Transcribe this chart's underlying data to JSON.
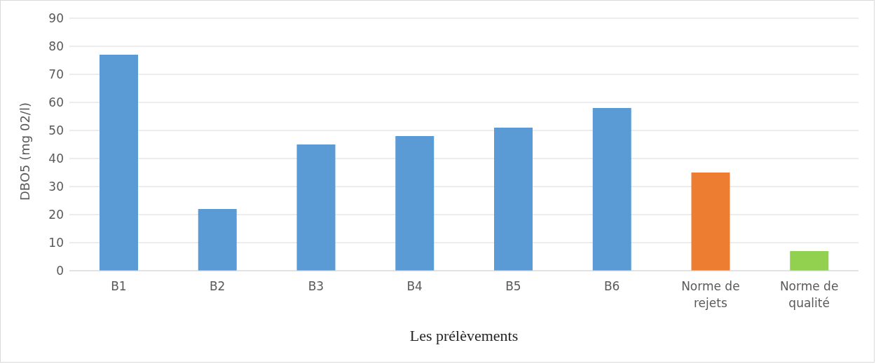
{
  "chart_data": {
    "type": "bar",
    "xlabel": "Les prélèvements",
    "ylabel": "DBO5 (mg 02/l)",
    "categories": [
      "B1",
      "B2",
      "B3",
      "B4",
      "B5",
      "B6",
      "Norme de rejets",
      "Norme de qualité"
    ],
    "values": [
      77,
      22,
      45,
      48,
      51,
      58,
      35,
      7
    ],
    "colors": [
      "#5b9bd5",
      "#5b9bd5",
      "#5b9bd5",
      "#5b9bd5",
      "#5b9bd5",
      "#5b9bd5",
      "#ed7d31",
      "#92d050"
    ],
    "ylim": [
      0,
      90
    ],
    "yticks": [
      0,
      10,
      20,
      30,
      40,
      50,
      60,
      70,
      80,
      90
    ],
    "grid": "y"
  }
}
